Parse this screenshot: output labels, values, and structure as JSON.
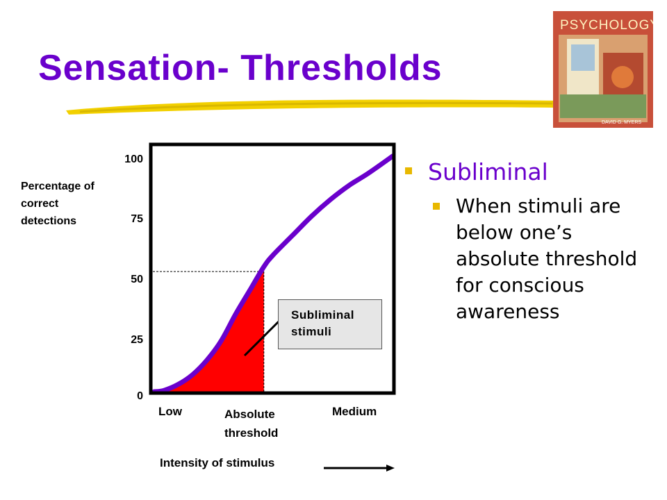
{
  "slide": {
    "title": "Sensation- Thresholds",
    "book_cover_label": "PSYCHOLOGY",
    "book_author": "DAVID G. MYERS"
  },
  "bullets": {
    "level1": "Subliminal",
    "level2": "When stimuli are below one’s absolute threshold for conscious awareness"
  },
  "chart_data": {
    "type": "line",
    "ylabel": "Percentage of correct detections",
    "yticks": [
      "100",
      "75",
      "50",
      "25",
      "0"
    ],
    "ylim": [
      0,
      100
    ],
    "xlabel": "Intensity of stimulus",
    "xticks": [
      {
        "label": "Low"
      },
      {
        "label": "Absolute threshold"
      },
      {
        "label": "Medium"
      }
    ],
    "curve": {
      "x": [
        0,
        0.04,
        0.1,
        0.16,
        0.22,
        0.28,
        0.34,
        0.4,
        0.46,
        0.5,
        0.58,
        0.66,
        0.74,
        0.82,
        0.9,
        1.0
      ],
      "y": [
        0,
        0.5,
        3,
        7,
        13,
        21,
        32,
        42,
        52,
        57,
        65,
        73,
        80,
        86,
        91,
        98
      ]
    },
    "absolute_threshold": {
      "x": 0.46,
      "y": 50
    },
    "shaded_region": "Subliminal stimuli",
    "callout": "Subliminal stimuli",
    "colors": {
      "curve": "#6a00cc",
      "shade": "#ff0000",
      "title": "#6a00cc",
      "bullet_marker": "#e8b800"
    }
  }
}
